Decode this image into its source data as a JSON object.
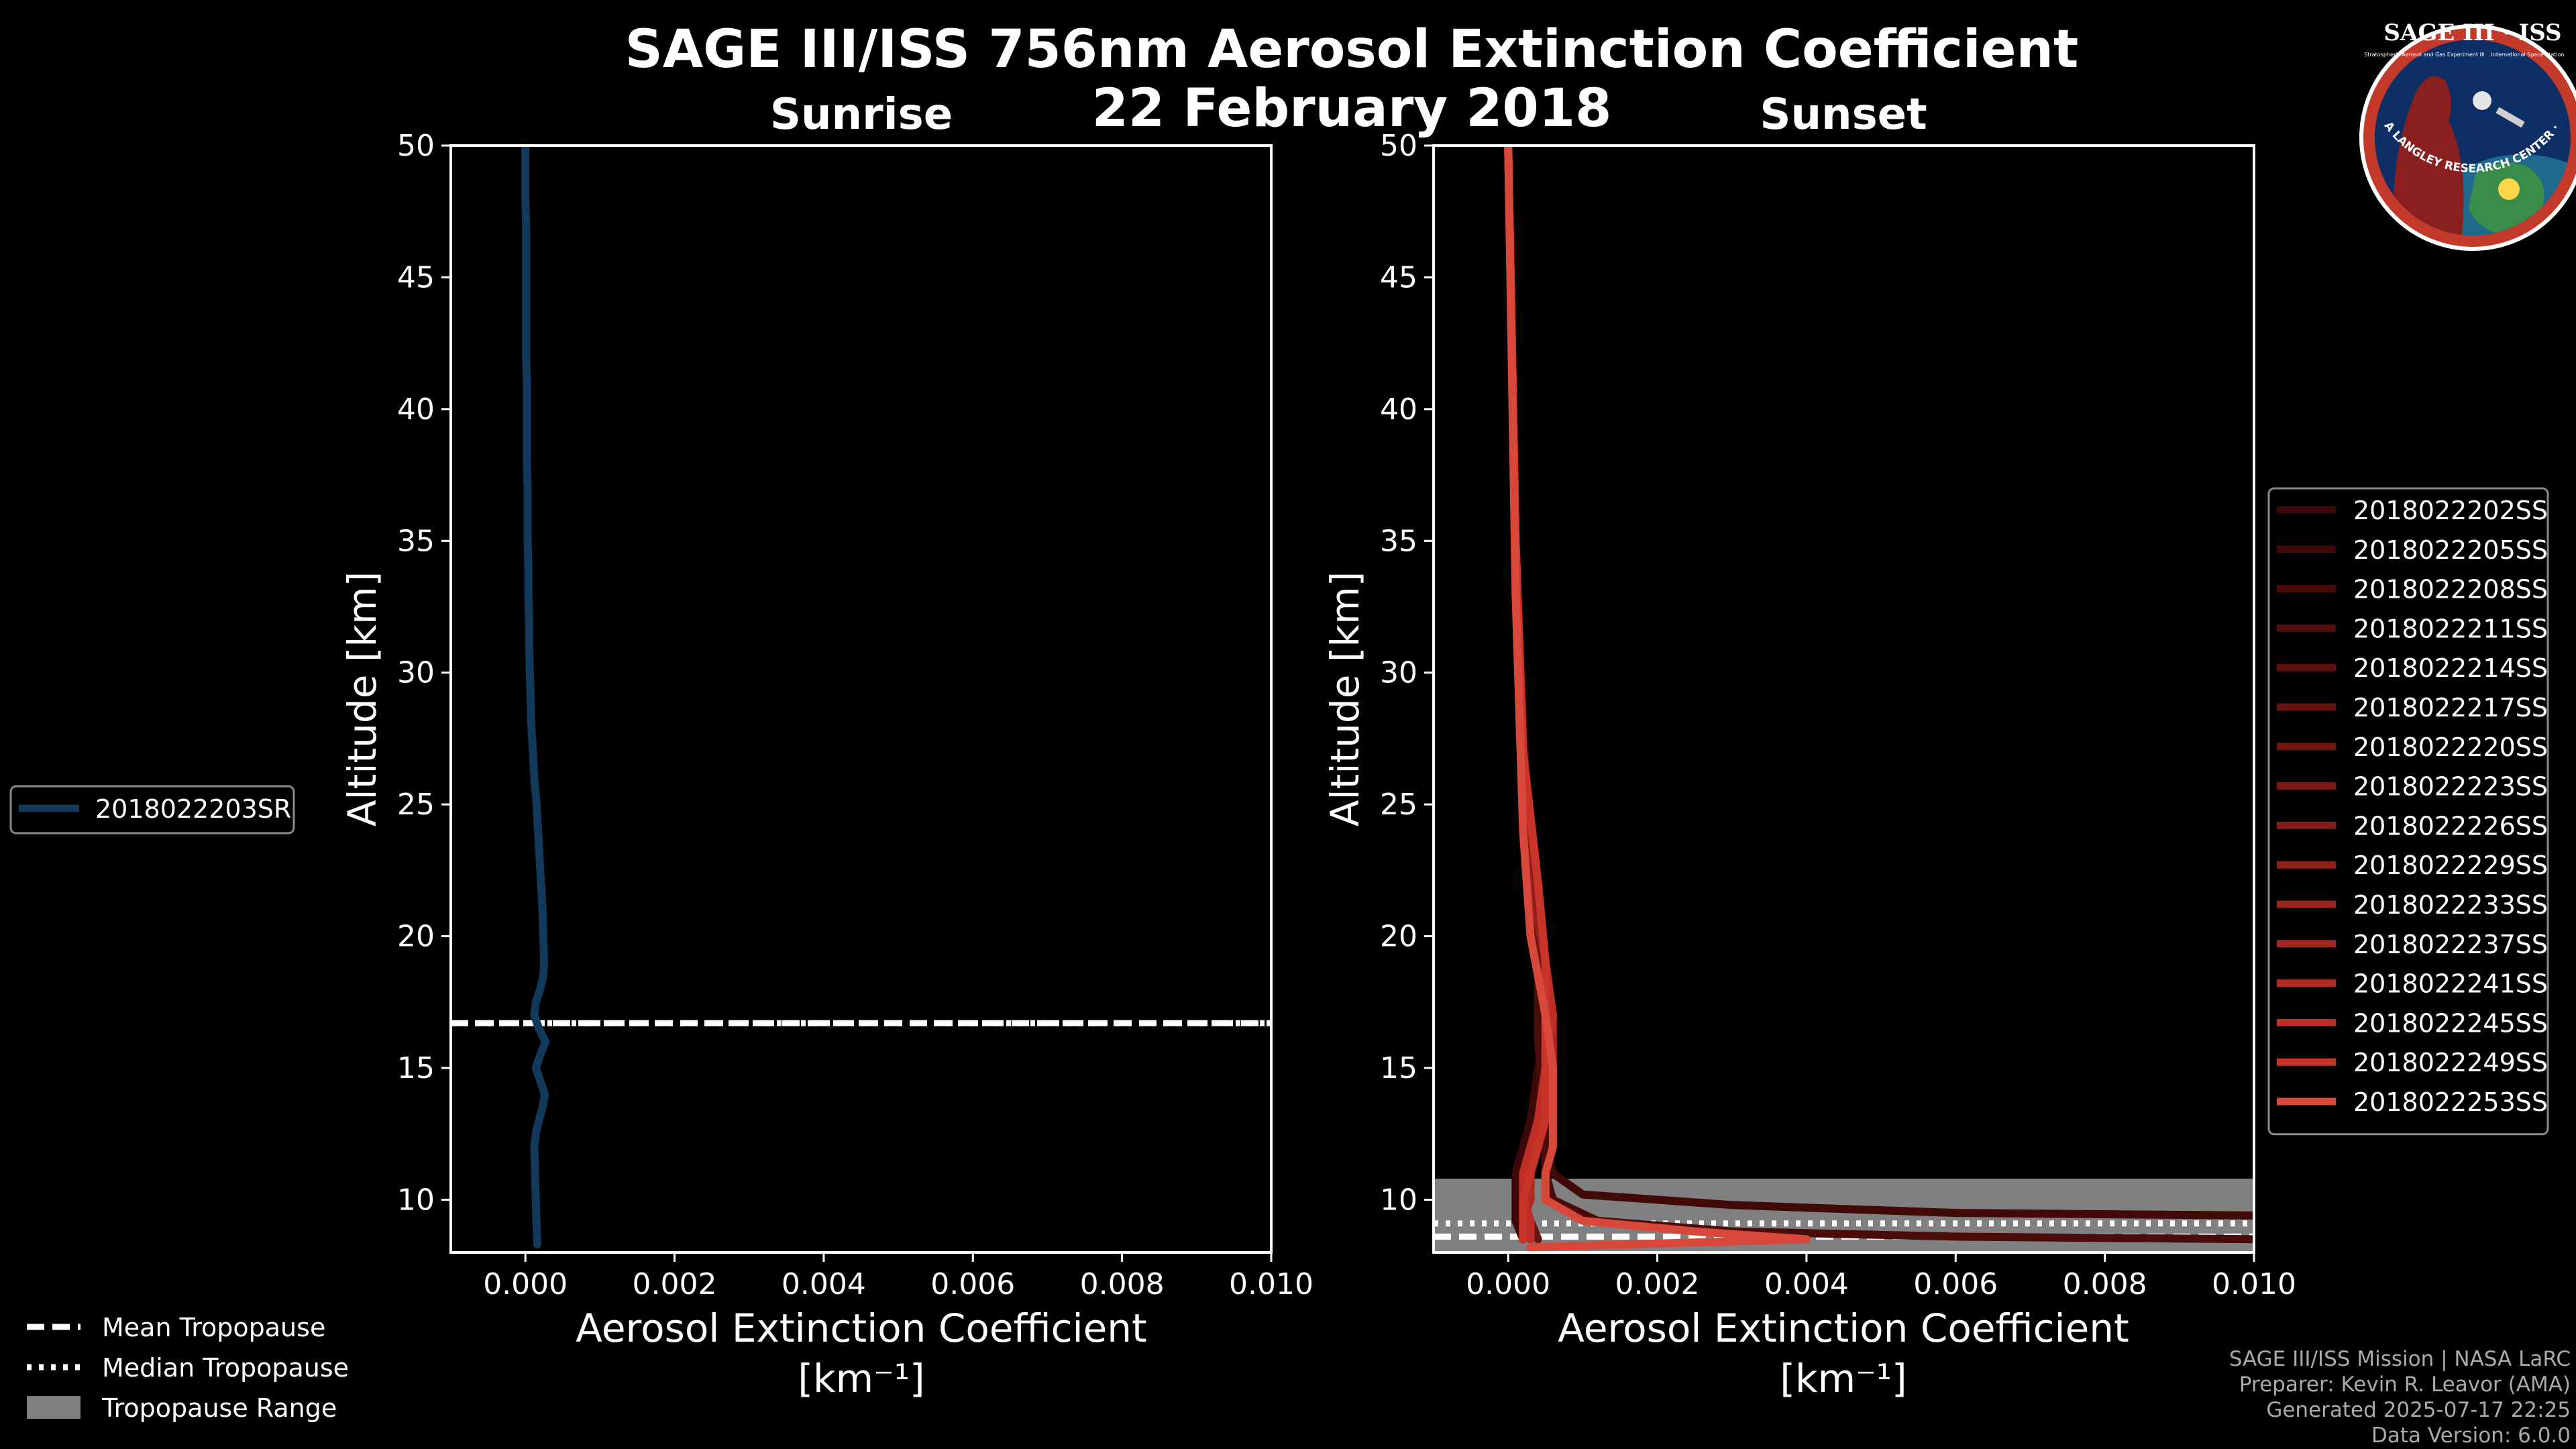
{
  "page": {
    "title": "SAGE III/ISS 756nm Aerosol Extinction Coefficient",
    "date": "22 February 2018",
    "footer": [
      "SAGE III/ISS Mission | NASA LaRC",
      "Preparer: Kevin R. Leavor (AMA)",
      "Generated 2025-07-17 22:25",
      "Data Version: 6.0.0"
    ],
    "logo": {
      "title": "SAGE III · ISS",
      "ring_text": "BALL · NASA LANGLEY RESEARCH CENTER · TAS-I · ESA",
      "small_left": "Stratospheric Aerosol and Gas Experiment III",
      "small_right": "International Space Station"
    }
  },
  "colors": {
    "sunrise": "#12385a",
    "tropopause_fill": "#808080",
    "sunset_palette": [
      "#3b0707",
      "#420909",
      "#4a0b0b",
      "#530e0d",
      "#5d100f",
      "#671311",
      "#711613",
      "#7b1915",
      "#861c18",
      "#901f1a",
      "#9b231d",
      "#a62720",
      "#b12b23",
      "#bd2f26",
      "#c8342a",
      "#d8483a"
    ]
  },
  "chart_data": [
    {
      "type": "line",
      "title": "Sunrise",
      "xlabel": "Aerosol Extinction Coefficient",
      "xlabel_unit": "[km⁻¹]",
      "ylabel": "Altitude [km]",
      "xlim": [
        -0.001,
        0.01
      ],
      "ylim": [
        8,
        50
      ],
      "xticks": [
        0.0,
        0.002,
        0.004,
        0.006,
        0.008,
        0.01
      ],
      "xtick_labels": [
        "0.000",
        "0.002",
        "0.004",
        "0.006",
        "0.008",
        "0.010"
      ],
      "yticks": [
        10,
        15,
        20,
        25,
        30,
        35,
        40,
        45,
        50
      ],
      "ytick_labels": [
        "10",
        "15",
        "20",
        "25",
        "30",
        "35",
        "40",
        "45",
        "50"
      ],
      "tropopause": {
        "mean": 16.7,
        "median": 16.7,
        "range": [
          16.7,
          16.7
        ]
      },
      "series": [
        {
          "name": "2018022203SR",
          "y": [
            8.3,
            9,
            10,
            11,
            12,
            12.5,
            13,
            13.5,
            14,
            14.5,
            15,
            15.5,
            16,
            16.5,
            17,
            17.5,
            18,
            18.5,
            19,
            20,
            21,
            22,
            23,
            24,
            25,
            26,
            27,
            28,
            29,
            30,
            31,
            32,
            33,
            34,
            35,
            36,
            37,
            38,
            39,
            40,
            41,
            42,
            43,
            44,
            45,
            46,
            47,
            48,
            49,
            50
          ],
          "x": [
            0.00016,
            0.00015,
            0.00014,
            0.00013,
            0.00012,
            0.00014,
            0.00018,
            0.00023,
            0.00026,
            0.0002,
            0.00014,
            0.0002,
            0.00027,
            0.00018,
            0.00012,
            0.00014,
            0.0002,
            0.00024,
            0.00025,
            0.00024,
            0.00023,
            0.00021,
            0.00019,
            0.00017,
            0.00015,
            0.00012,
            0.0001,
            8e-05,
            7e-05,
            6e-05,
            5e-05,
            5e-05,
            4e-05,
            4e-05,
            3e-05,
            3e-05,
            3e-05,
            2e-05,
            2e-05,
            2e-05,
            2e-05,
            1e-05,
            1e-05,
            1e-05,
            1e-05,
            1e-05,
            1e-05,
            0.0,
            0.0,
            0.0
          ]
        }
      ]
    },
    {
      "type": "line",
      "title": "Sunset",
      "xlabel": "Aerosol Extinction Coefficient",
      "xlabel_unit": "[km⁻¹]",
      "ylabel": "Altitude [km]",
      "xlim": [
        -0.001,
        0.01
      ],
      "ylim": [
        8,
        50
      ],
      "xticks": [
        0.0,
        0.002,
        0.004,
        0.006,
        0.008,
        0.01
      ],
      "xtick_labels": [
        "0.000",
        "0.002",
        "0.004",
        "0.006",
        "0.008",
        "0.010"
      ],
      "yticks": [
        10,
        15,
        20,
        25,
        30,
        35,
        40,
        45,
        50
      ],
      "ytick_labels": [
        "10",
        "15",
        "20",
        "25",
        "30",
        "35",
        "40",
        "45",
        "50"
      ],
      "tropopause": {
        "mean": 8.6,
        "median": 9.1,
        "range": [
          8.0,
          10.8
        ]
      },
      "series": [
        {
          "name": "2018022202SS",
          "x": [
            0.0002,
            0.0001,
            0.0001,
            0.0001,
            0.0002,
            0.0003,
            0.0004,
            0.0006,
            0.0005,
            0.0004,
            0.0002,
            0.0001,
            0.0
          ],
          "y": [
            8.5,
            9.2,
            10,
            11,
            12,
            13,
            15,
            17,
            19,
            22,
            27,
            35,
            50
          ]
        },
        {
          "name": "2018022205SS",
          "x": [
            0.0101,
            0.006,
            0.003,
            0.001,
            0.0006,
            0.0005,
            0.0004,
            0.0005,
            0.0004,
            0.0003,
            0.0002,
            0.0001,
            0.0
          ],
          "y": [
            9.4,
            9.5,
            9.8,
            10.2,
            11,
            12,
            14,
            17,
            20,
            23,
            28,
            35,
            50
          ]
        },
        {
          "name": "2018022208SS",
          "x": [
            0.0101,
            0.006,
            0.003,
            0.0012,
            0.0006,
            0.0005,
            0.0005,
            0.0004,
            0.0004,
            0.0003,
            0.0002,
            0.0001,
            0.0
          ],
          "y": [
            8.5,
            8.6,
            8.8,
            9.2,
            10,
            11,
            13,
            16,
            19,
            22,
            27,
            35,
            50
          ]
        },
        {
          "name": "2018022211SS",
          "x": [
            0.0003,
            0.0003,
            0.0002,
            0.0002,
            0.0003,
            0.0004,
            0.0005,
            0.0006,
            0.0005,
            0.0004,
            0.0002,
            0.0001,
            0.0
          ],
          "y": [
            8.5,
            9.2,
            10,
            11,
            12,
            13,
            15,
            17,
            19,
            22,
            27,
            35,
            50
          ]
        },
        {
          "name": "2018022214SS",
          "x": [
            0.0003,
            0.0002,
            0.0002,
            0.0003,
            0.0003,
            0.0005,
            0.0005,
            0.0006,
            0.0005,
            0.0004,
            0.0002,
            0.0001,
            0.0
          ],
          "y": [
            8.5,
            9.2,
            10,
            11,
            12,
            13,
            15,
            17,
            19,
            22,
            27,
            35,
            50
          ]
        },
        {
          "name": "2018022217SS",
          "x": [
            0.0004,
            0.0003,
            0.0002,
            0.0002,
            0.0004,
            0.0004,
            0.0005,
            0.0005,
            0.0004,
            0.0003,
            0.0002,
            0.0001,
            0.0
          ],
          "y": [
            8.5,
            9.2,
            10,
            11,
            12,
            13,
            15,
            17,
            19,
            22,
            27,
            35,
            50
          ]
        },
        {
          "name": "2018022220SS",
          "x": [
            0.0002,
            0.0002,
            0.0002,
            0.0003,
            0.0003,
            0.0004,
            0.0005,
            0.0006,
            0.0005,
            0.0004,
            0.0002,
            0.0001,
            0.0
          ],
          "y": [
            8.5,
            9.2,
            10,
            11,
            12,
            13,
            15,
            17,
            19,
            22,
            27,
            35,
            50
          ]
        },
        {
          "name": "2018022223SS",
          "x": [
            0.0003,
            0.0002,
            0.0002,
            0.0002,
            0.0003,
            0.0004,
            0.0006,
            0.0005,
            0.0005,
            0.0004,
            0.0002,
            0.0001,
            0.0
          ],
          "y": [
            8.5,
            9.2,
            10,
            11,
            12,
            13,
            15,
            17,
            19,
            22,
            27,
            35,
            50
          ]
        },
        {
          "name": "2018022226SS",
          "x": [
            0.0002,
            0.0002,
            0.0002,
            0.0003,
            0.0004,
            0.0005,
            0.0005,
            0.0006,
            0.0005,
            0.0004,
            0.0002,
            0.0001,
            0.0
          ],
          "y": [
            8.5,
            9.2,
            10,
            11,
            12,
            13,
            15,
            17,
            19,
            22,
            27,
            35,
            50
          ]
        },
        {
          "name": "2018022229SS",
          "x": [
            0.0003,
            0.0003,
            0.0002,
            0.0002,
            0.0003,
            0.0004,
            0.0005,
            0.0006,
            0.0005,
            0.0003,
            0.0002,
            0.0001,
            0.0
          ],
          "y": [
            8.5,
            9.2,
            10,
            11,
            12,
            13,
            15,
            17,
            19,
            22,
            27,
            35,
            50
          ]
        },
        {
          "name": "2018022233SS",
          "x": [
            0.0002,
            0.0002,
            0.0002,
            0.0003,
            0.0003,
            0.0004,
            0.0005,
            0.0005,
            0.0005,
            0.0004,
            0.0002,
            0.0001,
            0.0
          ],
          "y": [
            8.5,
            9.2,
            10,
            11,
            12,
            13,
            15,
            17,
            19,
            22,
            27,
            35,
            50
          ]
        },
        {
          "name": "2018022237SS",
          "x": [
            0.0003,
            0.0002,
            0.0002,
            0.0002,
            0.0003,
            0.0005,
            0.0006,
            0.0006,
            0.0005,
            0.0004,
            0.0002,
            0.0001,
            0.0
          ],
          "y": [
            8.5,
            9.2,
            10,
            11,
            12,
            13,
            15,
            17,
            19,
            22,
            27,
            35,
            50
          ]
        },
        {
          "name": "2018022241SS",
          "x": [
            0.0002,
            0.0002,
            0.0003,
            0.0003,
            0.0004,
            0.0004,
            0.0005,
            0.0006,
            0.0005,
            0.0004,
            0.0002,
            0.0001,
            0.0
          ],
          "y": [
            8.5,
            9.2,
            10,
            11,
            12,
            13,
            15,
            17,
            19,
            22,
            27,
            35,
            50
          ]
        },
        {
          "name": "2018022245SS",
          "x": [
            0.0003,
            0.0003,
            0.0002,
            0.0002,
            0.0003,
            0.0004,
            0.0005,
            0.0006,
            0.0005,
            0.0004,
            0.0002,
            0.0001,
            0.0
          ],
          "y": [
            8.5,
            9.2,
            10,
            11,
            12,
            13,
            15,
            17,
            19,
            22,
            27,
            35,
            50
          ]
        },
        {
          "name": "2018022249SS",
          "x": [
            0.0002,
            0.0002,
            0.0002,
            0.0003,
            0.0004,
            0.0005,
            0.0005,
            0.0005,
            0.0005,
            0.0004,
            0.0002,
            0.0001,
            0.0
          ],
          "y": [
            8.5,
            9.2,
            10,
            11,
            12,
            13,
            15,
            17,
            19,
            22,
            27,
            35,
            50
          ]
        },
        {
          "name": "2018022253SS",
          "x": [
            0.0003,
            0.004,
            0.0025,
            0.001,
            0.0005,
            0.0005,
            0.0006,
            0.0006,
            0.0006,
            0.0005,
            0.0003,
            0.0002,
            0.0001,
            0.0
          ],
          "y": [
            8.2,
            8.5,
            8.8,
            9.2,
            10,
            11,
            12,
            13,
            15,
            17,
            20,
            24,
            33,
            50
          ]
        }
      ]
    }
  ],
  "legends": {
    "sunrise": [
      {
        "label": "2018022203SR"
      }
    ],
    "tropopause": [
      {
        "label": "Mean Tropopause"
      },
      {
        "label": "Median Tropopause"
      },
      {
        "label": "Tropopause Range"
      }
    ]
  }
}
